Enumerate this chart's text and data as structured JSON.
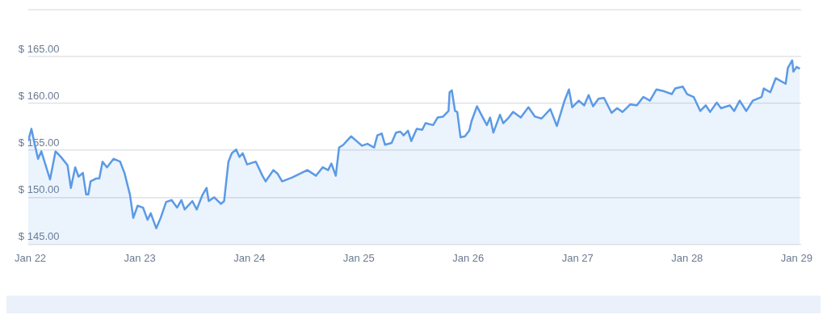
{
  "chart_data": {
    "type": "area",
    "x": [
      "--01-21T23:31",
      "--01-22T00:14",
      "--01-22T00:43",
      "--01-22T01:41",
      "--01-22T02:24",
      "--01-22T03:22",
      "--01-22T04:19",
      "--01-22T05:31",
      "--01-22T06:43",
      "--01-22T08:10",
      "--01-22T08:53",
      "--01-22T09:50",
      "--01-22T10:34",
      "--01-22T11:31",
      "--01-22T12:14",
      "--01-22T12:43",
      "--01-22T13:12",
      "--01-22T14:24",
      "--01-22T15:07",
      "--01-22T15:50",
      "--01-22T16:48",
      "--01-22T18:14",
      "--01-22T19:41",
      "--01-22T20:38",
      "--01-22T21:50",
      "--01-22T22:34",
      "--01-22T23:31",
      "--01-23T00:43",
      "--01-23T01:41",
      "--01-23T02:24",
      "--01-23T03:36",
      "--01-23T04:34",
      "--01-23T05:46",
      "--01-23T06:58",
      "--01-23T08:10",
      "--01-23T09:07",
      "--01-23T09:50",
      "--01-23T11:31",
      "--01-23T12:29",
      "--01-23T13:41",
      "--01-23T14:38",
      "--01-23T15:07",
      "--01-23T16:19",
      "--01-23T17:46",
      "--01-23T18:29",
      "--01-23T19:26",
      "--01-23T20:10",
      "--01-23T21:07",
      "--01-23T21:50",
      "--01-23T22:34",
      "--01-23T23:31",
      "--01-24T01:26",
      "--01-24T02:53",
      "--01-24T03:36",
      "--01-24T05:17",
      "--01-24T06:14",
      "--01-24T07:12",
      "--01-24T09:22",
      "--01-24T12:43",
      "--01-24T14:38",
      "--01-24T16:05",
      "--01-24T17:17",
      "--01-24T18:00",
      "--01-24T18:58",
      "--01-24T19:41",
      "--01-24T20:38",
      "--01-24T21:22",
      "--01-24T22:19",
      "--01-24T23:31",
      "--01-25T00:43",
      "--01-25T01:55",
      "--01-25T03:22",
      "--01-25T04:05",
      "--01-25T05:02",
      "--01-25T05:46",
      "--01-25T07:12",
      "--01-25T08:10",
      "--01-25T09:07",
      "--01-25T09:50",
      "--01-25T10:48",
      "--01-25T11:31",
      "--01-25T12:43",
      "--01-25T13:55",
      "--01-25T14:38",
      "--01-25T16:19",
      "--01-25T17:17",
      "--01-25T18:29",
      "--01-25T19:41",
      "--01-25T19:55",
      "--01-25T20:24",
      "--01-25T21:07",
      "--01-25T21:36",
      "--01-25T22:19",
      "--01-25T23:17",
      "--01-26T00:14",
      "--01-26T00:43",
      "--01-26T01:55",
      "--01-26T02:53",
      "--01-26T04:05",
      "--01-26T04:48",
      "--01-26T05:31",
      "--01-26T06:58",
      "--01-26T07:41",
      "--01-26T08:53",
      "--01-26T09:50",
      "--01-26T11:31",
      "--01-26T13:12",
      "--01-26T14:38",
      "--01-26T16:05",
      "--01-26T18:00",
      "--01-26T19:26",
      "--01-26T21:07",
      "--01-26T22:05",
      "--01-26T22:48",
      "--01-27T00:14",
      "--01-27T01:26",
      "--01-27T02:24",
      "--01-27T03:22",
      "--01-27T04:34",
      "--01-27T05:46",
      "--01-27T07:26",
      "--01-27T08:38",
      "--01-27T09:50",
      "--01-27T11:31",
      "--01-27T12:58",
      "--01-27T14:24",
      "--01-27T15:50",
      "--01-27T17:17",
      "--01-27T18:58",
      "--01-27T20:38",
      "--01-27T21:22",
      "--01-27T23:02",
      "--01-28T00:00",
      "--01-28T01:26",
      "--01-28T02:53",
      "--01-28T04:05",
      "--01-28T05:02",
      "--01-28T06:29",
      "--01-28T07:26",
      "--01-28T09:22",
      "--01-28T10:19",
      "--01-28T11:31",
      "--01-28T12:58",
      "--01-28T14:24",
      "--01-28T16:19",
      "--01-28T16:48",
      "--01-28T18:14",
      "--01-28T19:26",
      "--01-28T21:36",
      "--01-28T22:05",
      "--01-28T23:02",
      "--01-28T23:17",
      "--01-29T00:00",
      "--01-29T00:43"
    ],
    "series": [
      {
        "color": "#5b9ae6",
        "values": [
          156.0,
          157.3,
          156.2,
          154.1,
          154.9,
          153.4,
          151.9,
          154.9,
          154.3,
          153.4,
          151.0,
          153.2,
          152.2,
          152.6,
          150.3,
          150.3,
          151.7,
          152.0,
          152.0,
          153.8,
          153.2,
          154.1,
          153.8,
          152.6,
          150.3,
          147.8,
          149.1,
          148.9,
          147.6,
          148.3,
          146.7,
          147.8,
          149.5,
          149.7,
          148.9,
          149.7,
          148.7,
          149.6,
          148.7,
          150.2,
          151.0,
          149.6,
          150.0,
          149.3,
          149.6,
          153.8,
          154.7,
          155.1,
          154.3,
          154.7,
          153.5,
          153.8,
          152.3,
          151.7,
          152.9,
          152.5,
          151.7,
          152.1,
          152.9,
          152.3,
          153.2,
          152.9,
          153.6,
          152.3,
          155.3,
          155.6,
          156.0,
          156.5,
          156.0,
          155.5,
          155.7,
          155.3,
          156.6,
          156.8,
          155.6,
          155.8,
          156.9,
          157.0,
          156.6,
          157.1,
          156.0,
          157.3,
          157.2,
          157.9,
          157.7,
          158.5,
          158.6,
          159.2,
          161.2,
          161.4,
          159.2,
          159.1,
          156.4,
          156.5,
          157.1,
          158.1,
          159.7,
          158.8,
          157.7,
          158.5,
          156.9,
          158.8,
          157.9,
          158.5,
          159.1,
          158.5,
          159.6,
          158.6,
          158.4,
          159.4,
          157.6,
          160.3,
          161.5,
          159.6,
          160.3,
          159.8,
          160.9,
          159.7,
          160.5,
          160.6,
          159.0,
          159.5,
          159.1,
          159.9,
          159.8,
          160.7,
          160.3,
          161.5,
          161.3,
          161.0,
          161.6,
          161.8,
          161.0,
          160.7,
          159.2,
          159.8,
          159.1,
          160.1,
          159.5,
          159.8,
          159.2,
          160.3,
          159.2,
          160.3,
          160.7,
          161.6,
          161.2,
          162.7,
          162.1,
          163.8,
          164.6,
          163.4,
          163.9,
          163.7
        ]
      }
    ],
    "xlim": [
      "--01-21T23:31",
      "--01-29T00:58"
    ],
    "xticks": [
      {
        "value": "--01-22",
        "label": "Jan 22"
      },
      {
        "value": "--01-23",
        "label": "Jan 23"
      },
      {
        "value": "--01-24",
        "label": "Jan 24"
      },
      {
        "value": "--01-25",
        "label": "Jan 25"
      },
      {
        "value": "--01-26",
        "label": "Jan 26"
      },
      {
        "value": "--01-27",
        "label": "Jan 27"
      },
      {
        "value": "--01-28",
        "label": "Jan 28"
      },
      {
        "value": "--01-29",
        "label": "Jan 29"
      }
    ],
    "ylim": [
      145,
      170
    ],
    "yticks": [
      {
        "value": 145,
        "label": "$ 145.00"
      },
      {
        "value": 150,
        "label": "$ 150.00"
      },
      {
        "value": 155,
        "label": "$ 155.00"
      },
      {
        "value": 160,
        "label": "$ 160.00"
      },
      {
        "value": 165,
        "label": "$ 165.00"
      }
    ],
    "grid": "y",
    "legend": false,
    "marker": "none",
    "line_style": "solid"
  }
}
